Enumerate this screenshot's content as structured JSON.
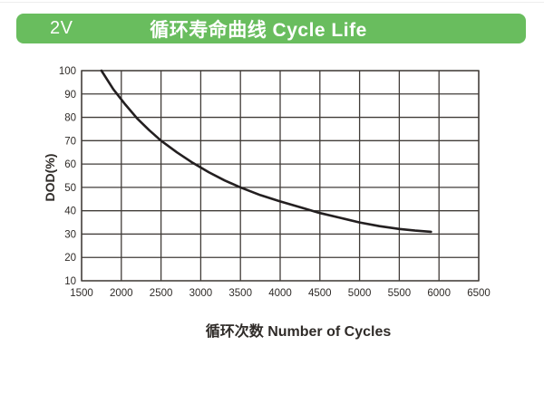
{
  "header": {
    "badge": "2V",
    "title": "循环寿命曲线 Cycle Life",
    "accent_color": "#69bd5e",
    "text_color": "#ffffff"
  },
  "chart_data": {
    "type": "line",
    "title": "循环寿命曲线 Cycle Life",
    "xlabel": "循环次数 Number of Cycles",
    "ylabel": "DOD(%)",
    "xlim": [
      1500,
      6500
    ],
    "ylim": [
      10,
      100
    ],
    "x_ticks": [
      1500,
      2000,
      2500,
      3000,
      3500,
      4000,
      4500,
      5000,
      5500,
      6000,
      6500
    ],
    "y_ticks": [
      10,
      20,
      30,
      40,
      50,
      60,
      70,
      80,
      90,
      100
    ],
    "grid": true,
    "legend": "none",
    "grid_color": "#413c38",
    "line_color": "#231f20",
    "series": [
      {
        "name": "cycle-life-curve",
        "points": [
          [
            1750,
            100
          ],
          [
            1900,
            92
          ],
          [
            2050,
            85.5
          ],
          [
            2200,
            79.5
          ],
          [
            2350,
            74.5
          ],
          [
            2500,
            70
          ],
          [
            2700,
            65
          ],
          [
            2900,
            60.5
          ],
          [
            3100,
            56.5
          ],
          [
            3300,
            53
          ],
          [
            3500,
            50
          ],
          [
            3750,
            46.7
          ],
          [
            4000,
            44
          ],
          [
            4250,
            41.5
          ],
          [
            4500,
            39
          ],
          [
            4750,
            37
          ],
          [
            5000,
            35
          ],
          [
            5250,
            33.4
          ],
          [
            5500,
            32.2
          ],
          [
            5700,
            31.5
          ],
          [
            5900,
            31
          ]
        ]
      }
    ]
  }
}
